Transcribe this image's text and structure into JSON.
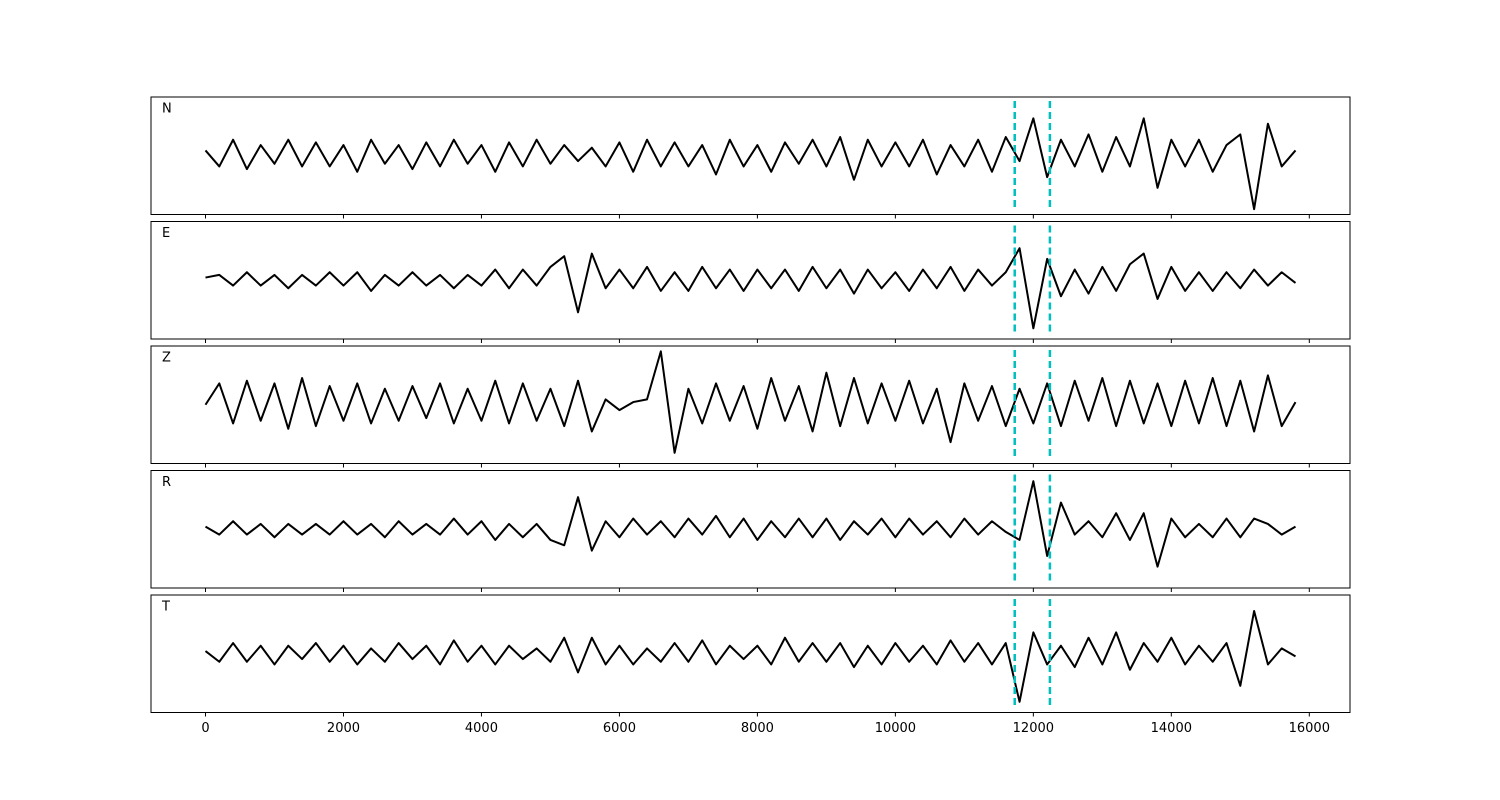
{
  "chart_data": {
    "type": "line",
    "x": [
      0,
      200,
      400,
      600,
      800,
      1000,
      1200,
      1400,
      1600,
      1800,
      2000,
      2200,
      2400,
      2600,
      2800,
      3000,
      3200,
      3400,
      3600,
      3800,
      4000,
      4200,
      4400,
      4600,
      4800,
      5000,
      5200,
      5400,
      5600,
      5800,
      6000,
      6200,
      6400,
      6600,
      6800,
      7000,
      7200,
      7400,
      7600,
      7800,
      8000,
      8200,
      8400,
      8600,
      8800,
      9000,
      9200,
      9400,
      9600,
      9800,
      10000,
      10200,
      10400,
      10600,
      10800,
      11000,
      11200,
      11400,
      11600,
      11800,
      12000,
      12200,
      12400,
      12600,
      12800,
      13000,
      13200,
      13400,
      13600,
      13800,
      14000,
      14200,
      14400,
      14600,
      14800,
      15000,
      15200,
      15400,
      15600,
      15800
    ],
    "series": [
      {
        "name": "N",
        "color": "#000000",
        "values": [
          0.1,
          -0.2,
          0.3,
          -0.25,
          0.2,
          -0.15,
          0.3,
          -0.2,
          0.25,
          -0.2,
          0.2,
          -0.3,
          0.3,
          -0.15,
          0.2,
          -0.25,
          0.25,
          -0.2,
          0.3,
          -0.15,
          0.2,
          -0.3,
          0.25,
          -0.2,
          0.3,
          -0.15,
          0.2,
          -0.1,
          0.15,
          -0.2,
          0.25,
          -0.3,
          0.3,
          -0.2,
          0.25,
          -0.2,
          0.2,
          -0.35,
          0.3,
          -0.2,
          0.2,
          -0.3,
          0.25,
          -0.15,
          0.3,
          -0.2,
          0.35,
          -0.45,
          0.3,
          -0.2,
          0.25,
          -0.2,
          0.3,
          -0.35,
          0.2,
          -0.2,
          0.3,
          -0.3,
          0.35,
          -0.1,
          0.7,
          -0.4,
          0.3,
          -0.2,
          0.4,
          -0.3,
          0.35,
          -0.2,
          0.7,
          -0.6,
          0.3,
          -0.2,
          0.3,
          -0.3,
          0.2,
          0.4,
          -1.0,
          0.6,
          -0.2,
          0.1
        ]
      },
      {
        "name": "E",
        "color": "#000000",
        "values": [
          0.05,
          0.1,
          -0.1,
          0.15,
          -0.1,
          0.1,
          -0.15,
          0.1,
          -0.1,
          0.15,
          -0.1,
          0.15,
          -0.2,
          0.1,
          -0.1,
          0.15,
          -0.1,
          0.1,
          -0.15,
          0.1,
          -0.1,
          0.2,
          -0.15,
          0.2,
          -0.1,
          0.25,
          0.45,
          -0.6,
          0.5,
          -0.15,
          0.2,
          -0.15,
          0.25,
          -0.2,
          0.15,
          -0.2,
          0.25,
          -0.15,
          0.2,
          -0.2,
          0.2,
          -0.15,
          0.2,
          -0.2,
          0.25,
          -0.15,
          0.2,
          -0.25,
          0.2,
          -0.15,
          0.15,
          -0.2,
          0.2,
          -0.15,
          0.25,
          -0.2,
          0.2,
          -0.1,
          0.15,
          0.6,
          -0.9,
          0.4,
          -0.3,
          0.2,
          -0.25,
          0.25,
          -0.2,
          0.3,
          0.5,
          -0.35,
          0.25,
          -0.2,
          0.15,
          -0.2,
          0.15,
          -0.15,
          0.2,
          -0.1,
          0.15,
          -0.05
        ]
      },
      {
        "name": "Z",
        "color": "#000000",
        "values": [
          0.0,
          0.4,
          -0.35,
          0.45,
          -0.3,
          0.4,
          -0.45,
          0.5,
          -0.4,
          0.35,
          -0.3,
          0.4,
          -0.35,
          0.3,
          -0.3,
          0.35,
          -0.25,
          0.4,
          -0.35,
          0.3,
          -0.3,
          0.45,
          -0.35,
          0.4,
          -0.3,
          0.3,
          -0.4,
          0.45,
          -0.5,
          0.1,
          -0.1,
          0.05,
          0.1,
          1.0,
          -0.9,
          0.3,
          -0.35,
          0.4,
          -0.3,
          0.35,
          -0.45,
          0.5,
          -0.3,
          0.35,
          -0.5,
          0.6,
          -0.4,
          0.5,
          -0.35,
          0.4,
          -0.3,
          0.45,
          -0.35,
          0.3,
          -0.7,
          0.4,
          -0.3,
          0.35,
          -0.4,
          0.3,
          -0.35,
          0.4,
          -0.4,
          0.45,
          -0.3,
          0.5,
          -0.4,
          0.45,
          -0.35,
          0.4,
          -0.4,
          0.45,
          -0.35,
          0.5,
          -0.4,
          0.45,
          -0.5,
          0.55,
          -0.4,
          0.05
        ]
      },
      {
        "name": "R",
        "color": "#000000",
        "values": [
          0.05,
          -0.1,
          0.15,
          -0.1,
          0.1,
          -0.15,
          0.1,
          -0.1,
          0.1,
          -0.1,
          0.15,
          -0.1,
          0.1,
          -0.15,
          0.15,
          -0.1,
          0.1,
          -0.1,
          0.2,
          -0.1,
          0.15,
          -0.2,
          0.1,
          -0.15,
          0.1,
          -0.2,
          -0.3,
          0.6,
          -0.4,
          0.15,
          -0.15,
          0.2,
          -0.1,
          0.15,
          -0.15,
          0.2,
          -0.1,
          0.25,
          -0.15,
          0.2,
          -0.2,
          0.15,
          -0.15,
          0.2,
          -0.15,
          0.2,
          -0.2,
          0.15,
          -0.1,
          0.2,
          -0.15,
          0.2,
          -0.1,
          0.15,
          -0.15,
          0.2,
          -0.1,
          0.15,
          -0.05,
          -0.2,
          0.9,
          -0.5,
          0.5,
          -0.1,
          0.15,
          -0.15,
          0.3,
          -0.2,
          0.3,
          -0.7,
          0.2,
          -0.15,
          0.1,
          -0.15,
          0.2,
          -0.15,
          0.2,
          0.1,
          -0.1,
          0.05
        ]
      },
      {
        "name": "T",
        "color": "#000000",
        "values": [
          0.05,
          -0.15,
          0.2,
          -0.15,
          0.15,
          -0.2,
          0.15,
          -0.1,
          0.2,
          -0.15,
          0.15,
          -0.2,
          0.1,
          -0.15,
          0.2,
          -0.1,
          0.15,
          -0.2,
          0.25,
          -0.15,
          0.15,
          -0.2,
          0.15,
          -0.1,
          0.1,
          -0.15,
          0.3,
          -0.35,
          0.3,
          -0.2,
          0.15,
          -0.2,
          0.1,
          -0.15,
          0.2,
          -0.15,
          0.25,
          -0.2,
          0.15,
          -0.1,
          0.15,
          -0.2,
          0.3,
          -0.15,
          0.2,
          -0.15,
          0.2,
          -0.25,
          0.15,
          -0.2,
          0.2,
          -0.15,
          0.15,
          -0.2,
          0.25,
          -0.15,
          0.2,
          -0.2,
          0.2,
          -0.9,
          0.4,
          -0.2,
          0.15,
          -0.25,
          0.3,
          -0.2,
          0.4,
          -0.3,
          0.2,
          -0.15,
          0.3,
          -0.2,
          0.15,
          -0.15,
          0.2,
          -0.6,
          0.8,
          -0.2,
          0.1,
          -0.05
        ]
      }
    ],
    "xlim": [
      -790,
      16590
    ],
    "xticks": [
      0,
      2000,
      4000,
      6000,
      8000,
      10000,
      12000,
      14000,
      16000
    ],
    "ylim": [
      -1.1,
      1.1
    ],
    "vlines": [
      11730,
      12240
    ],
    "vline_color": "#00bfbf",
    "vline_style": "dashed"
  }
}
